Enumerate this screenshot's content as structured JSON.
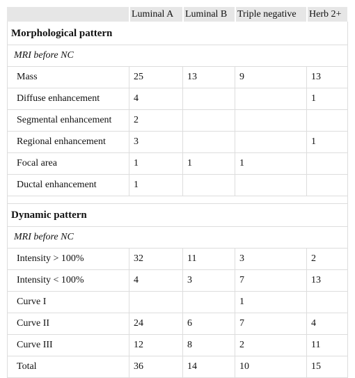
{
  "table": {
    "header": [
      "Luminal A",
      "Luminal B",
      "Triple negative",
      "Herb 2+"
    ],
    "sections": [
      {
        "title": "Morphological pattern",
        "subtitle": "MRI before NC",
        "rows": [
          {
            "label": "Mass",
            "cells": [
              25,
              13,
              9,
              13
            ]
          },
          {
            "label": "Diffuse enhancement",
            "cells": [
              4,
              null,
              null,
              1
            ]
          },
          {
            "label": "Segmental enhancement",
            "cells": [
              2,
              null,
              null,
              null
            ]
          },
          {
            "label": "Regional enhancement",
            "cells": [
              3,
              null,
              null,
              1
            ]
          },
          {
            "label": "Focal area",
            "cells": [
              1,
              1,
              1,
              null
            ]
          },
          {
            "label": "Ductal enhancement",
            "cells": [
              1,
              null,
              null,
              null
            ]
          }
        ]
      },
      {
        "title": "Dynamic pattern",
        "subtitle": "MRI before NC",
        "rows": [
          {
            "label": "Intensity > 100%",
            "cells": [
              32,
              11,
              3,
              2
            ]
          },
          {
            "label": "Intensity < 100%",
            "cells": [
              4,
              3,
              7,
              13
            ]
          },
          {
            "label": "Curve I",
            "cells": [
              null,
              null,
              1,
              null
            ]
          },
          {
            "label": "Curve II",
            "cells": [
              24,
              6,
              7,
              4
            ]
          },
          {
            "label": "Curve III",
            "cells": [
              12,
              8,
              2,
              11
            ]
          },
          {
            "label": "Total",
            "cells": [
              36,
              14,
              10,
              15
            ]
          }
        ]
      }
    ]
  }
}
